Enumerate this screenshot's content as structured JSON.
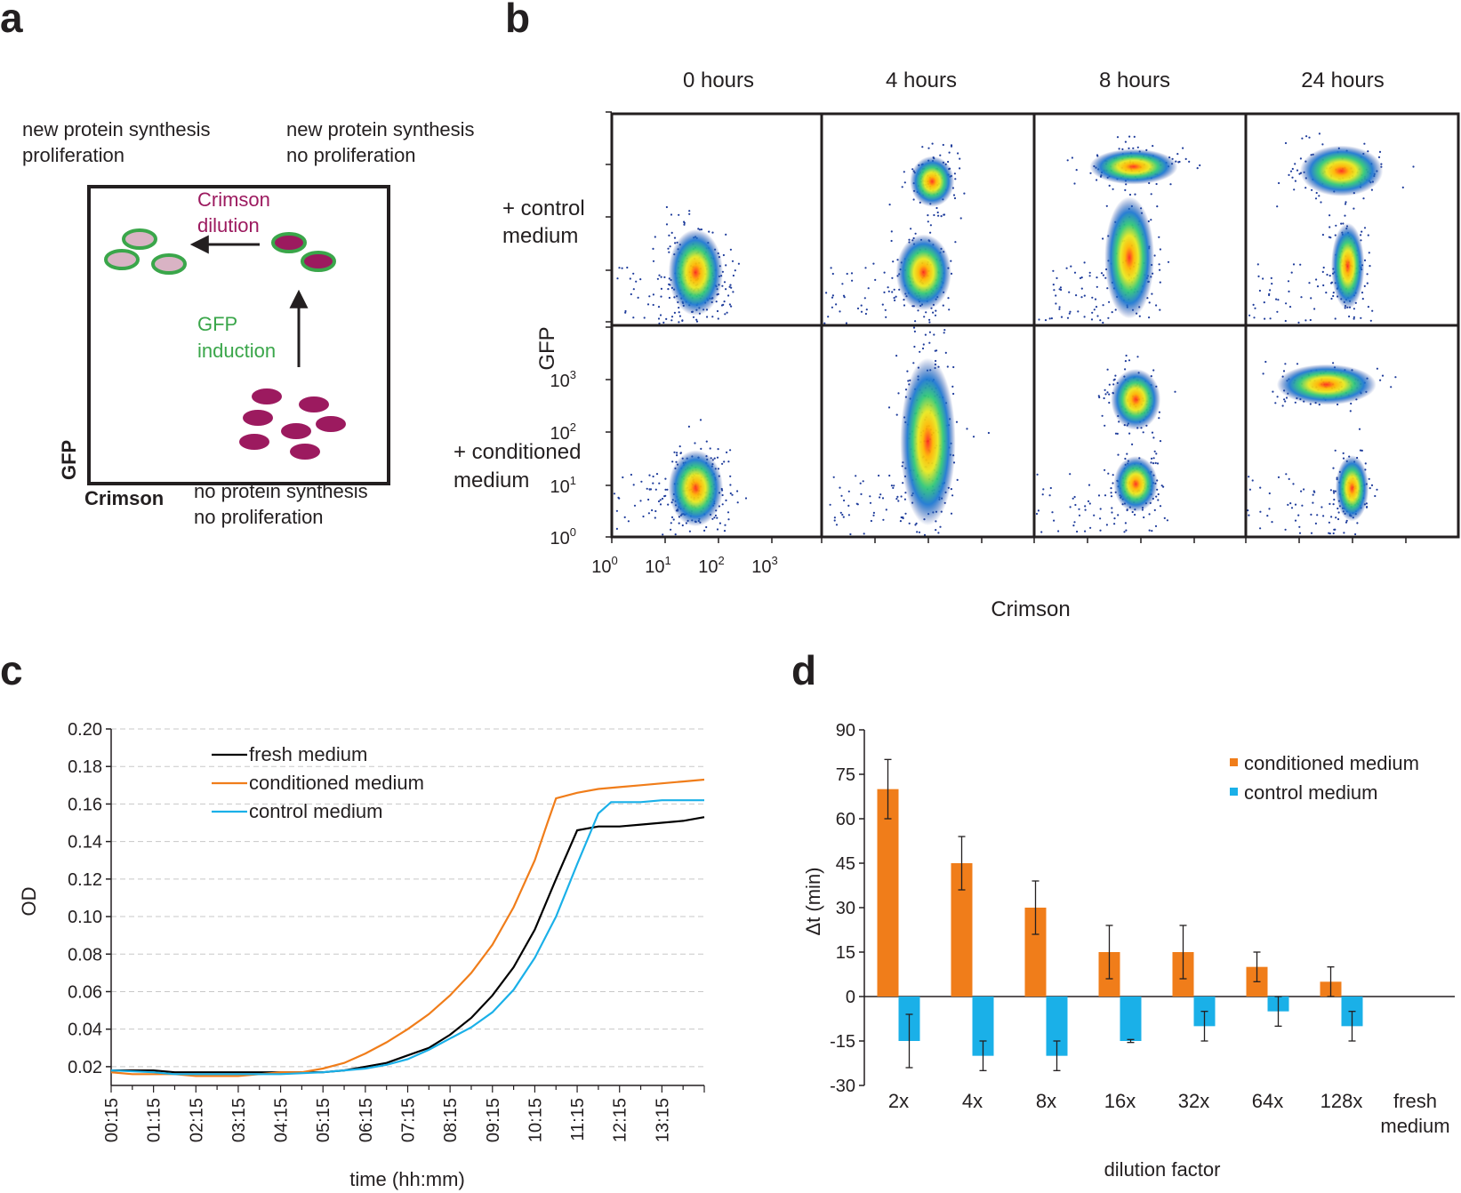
{
  "panel_a": {
    "label": "a",
    "top_left_text": [
      "new protein synthesis",
      "proliferation"
    ],
    "top_right_text": [
      "new protein synthesis",
      "no proliferation"
    ],
    "bottom_text": [
      "no protein synthesis",
      "no proliferation"
    ],
    "crimson_dilution": [
      "Crimson",
      "dilution"
    ],
    "gfp_induction": [
      "GFP",
      "induction"
    ],
    "x_axis": "Crimson",
    "y_axis": "GFP",
    "colors": {
      "crimson": "#9c1a5f",
      "gfp": "#3aa64a",
      "light_fill": "#d9b3c4"
    }
  },
  "panel_b": {
    "label": "b",
    "columns": [
      "0 hours",
      "4 hours",
      "8 hours",
      "24 hours"
    ],
    "rows": [
      [
        "+ control",
        "medium"
      ],
      [
        "+ conditioned",
        "medium"
      ]
    ],
    "y_axis": "GFP",
    "x_axis": "Crimson",
    "tick_base": "10",
    "tick_exponents": [
      "0",
      "1",
      "2",
      "3"
    ]
  },
  "panel_c": {
    "label": "c",
    "chart_data": {
      "type": "line",
      "xlabel": "time (hh:mm)",
      "ylabel": "OD",
      "ylim": [
        0.01,
        0.2
      ],
      "y_ticks": [
        "0.02",
        "0.04",
        "0.06",
        "0.08",
        "0.10",
        "0.12",
        "0.14",
        "0.16",
        "0.18",
        "0.20"
      ],
      "x_ticks": [
        "00:15",
        "01:15",
        "02:15",
        "03:15",
        "04:15",
        "05:15",
        "06:15",
        "07:15",
        "08:15",
        "09:15",
        "10:15",
        "11:15",
        "12:15",
        "13:15"
      ],
      "x_hours": [
        0,
        14
      ],
      "series": [
        {
          "name": "fresh medium",
          "color": "#000000",
          "points": [
            [
              0,
              0.018
            ],
            [
              1,
              0.018
            ],
            [
              1.5,
              0.017
            ],
            [
              2,
              0.017
            ],
            [
              3,
              0.017
            ],
            [
              4,
              0.017
            ],
            [
              5,
              0.017
            ],
            [
              5.5,
              0.018
            ],
            [
              6,
              0.02
            ],
            [
              6.5,
              0.022
            ],
            [
              7,
              0.026
            ],
            [
              7.5,
              0.03
            ],
            [
              8,
              0.037
            ],
            [
              8.5,
              0.046
            ],
            [
              9,
              0.058
            ],
            [
              9.5,
              0.073
            ],
            [
              10,
              0.093
            ],
            [
              10.5,
              0.12
            ],
            [
              11,
              0.146
            ],
            [
              11.5,
              0.148
            ],
            [
              12,
              0.148
            ],
            [
              12.5,
              0.149
            ],
            [
              13,
              0.15
            ],
            [
              13.5,
              0.151
            ],
            [
              14,
              0.153
            ]
          ]
        },
        {
          "name": "conditioned medium",
          "color": "#f07d1a",
          "points": [
            [
              0,
              0.017
            ],
            [
              0.5,
              0.016
            ],
            [
              1,
              0.016
            ],
            [
              1.5,
              0.016
            ],
            [
              2,
              0.015
            ],
            [
              3,
              0.015
            ],
            [
              3.5,
              0.016
            ],
            [
              4,
              0.017
            ],
            [
              4.5,
              0.017
            ],
            [
              5,
              0.019
            ],
            [
              5.5,
              0.022
            ],
            [
              6,
              0.027
            ],
            [
              6.5,
              0.033
            ],
            [
              7,
              0.04
            ],
            [
              7.5,
              0.048
            ],
            [
              8,
              0.058
            ],
            [
              8.5,
              0.07
            ],
            [
              9,
              0.085
            ],
            [
              9.5,
              0.105
            ],
            [
              10,
              0.13
            ],
            [
              10.3,
              0.15
            ],
            [
              10.5,
              0.163
            ],
            [
              11,
              0.166
            ],
            [
              11.5,
              0.168
            ],
            [
              12,
              0.169
            ],
            [
              12.5,
              0.17
            ],
            [
              13,
              0.171
            ],
            [
              13.5,
              0.172
            ],
            [
              14,
              0.173
            ]
          ]
        },
        {
          "name": "control medium",
          "color": "#1ab0e8",
          "points": [
            [
              0,
              0.018
            ],
            [
              1,
              0.017
            ],
            [
              1.5,
              0.016
            ],
            [
              2,
              0.016
            ],
            [
              3,
              0.016
            ],
            [
              4,
              0.016
            ],
            [
              5,
              0.017
            ],
            [
              5.5,
              0.018
            ],
            [
              6,
              0.019
            ],
            [
              6.5,
              0.021
            ],
            [
              7,
              0.024
            ],
            [
              7.5,
              0.029
            ],
            [
              8,
              0.035
            ],
            [
              8.5,
              0.041
            ],
            [
              9,
              0.049
            ],
            [
              9.5,
              0.061
            ],
            [
              10,
              0.078
            ],
            [
              10.5,
              0.1
            ],
            [
              11,
              0.128
            ],
            [
              11.5,
              0.155
            ],
            [
              11.8,
              0.161
            ],
            [
              12,
              0.161
            ],
            [
              12.5,
              0.161
            ],
            [
              13,
              0.162
            ],
            [
              13.5,
              0.162
            ],
            [
              14,
              0.162
            ]
          ]
        }
      ]
    }
  },
  "panel_d": {
    "label": "d",
    "chart_data": {
      "type": "bar",
      "ylabel": "Δt (min)",
      "xlabel": "dilution factor",
      "ylim": [
        -30,
        90
      ],
      "y_ticks": [
        "-30",
        "-15",
        "0",
        "15",
        "30",
        "45",
        "60",
        "75",
        "90"
      ],
      "categories": [
        [
          "2x"
        ],
        [
          "4x"
        ],
        [
          "8x"
        ],
        [
          "16x"
        ],
        [
          "32x"
        ],
        [
          "64x"
        ],
        [
          "128x"
        ],
        [
          "fresh",
          "medium"
        ]
      ],
      "series": [
        {
          "name": "conditioned medium",
          "color": "#f07d1a",
          "values": [
            70,
            45,
            30,
            15,
            15,
            10,
            5,
            null
          ],
          "errors": [
            10,
            9,
            9,
            9,
            9,
            5,
            5,
            null
          ]
        },
        {
          "name": "control medium",
          "color": "#1ab0e8",
          "values": [
            -15,
            -20,
            -20,
            -15,
            -10,
            -5,
            -10,
            null
          ],
          "errors": [
            9,
            5,
            5,
            0.5,
            5,
            5,
            5,
            null
          ]
        }
      ]
    }
  }
}
